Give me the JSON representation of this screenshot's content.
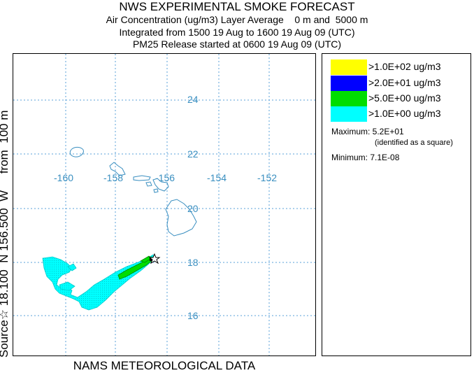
{
  "header": {
    "title": "NWS EXPERIMENTAL SMOKE FORECAST",
    "line1": "Air Concentration (ug/m3) Layer Average    0 m and  5000 m",
    "line2": "Integrated from 1500 19 Aug to 1600 19 Aug 09 (UTC)",
    "line3": "PM25 Release started at 0600 19 Aug 09 (UTC)"
  },
  "side_label": "Source☆ 18.100  N 156.500  W     from  100 m",
  "footer": "NAMS METEOROLOGICAL DATA",
  "map": {
    "longitude_labels": [
      "-160",
      "-158",
      "-156",
      "-154",
      "-152"
    ],
    "latitude_labels": [
      "24",
      "22",
      "20",
      "18",
      "16"
    ],
    "grid_color": "#5aa0d8",
    "coast_color": "#3a8fc0",
    "source_marker_icon": "star-icon"
  },
  "legend": {
    "items": [
      {
        "label": ">1.0E+02 ug/m3",
        "color": "#ffff00"
      },
      {
        "label": ">2.0E+01 ug/m3",
        "color": "#0000ff"
      },
      {
        "label": ">5.0E+00 ug/m3",
        "color": "#00dd00"
      },
      {
        "label": ">1.0E+00 ug/m3",
        "color": "#00ffff"
      }
    ],
    "maximum": "Maximum: 5.2E+01",
    "maximum_note": "(identified as a square)",
    "minimum": "Minimum: 7.1E-08"
  }
}
